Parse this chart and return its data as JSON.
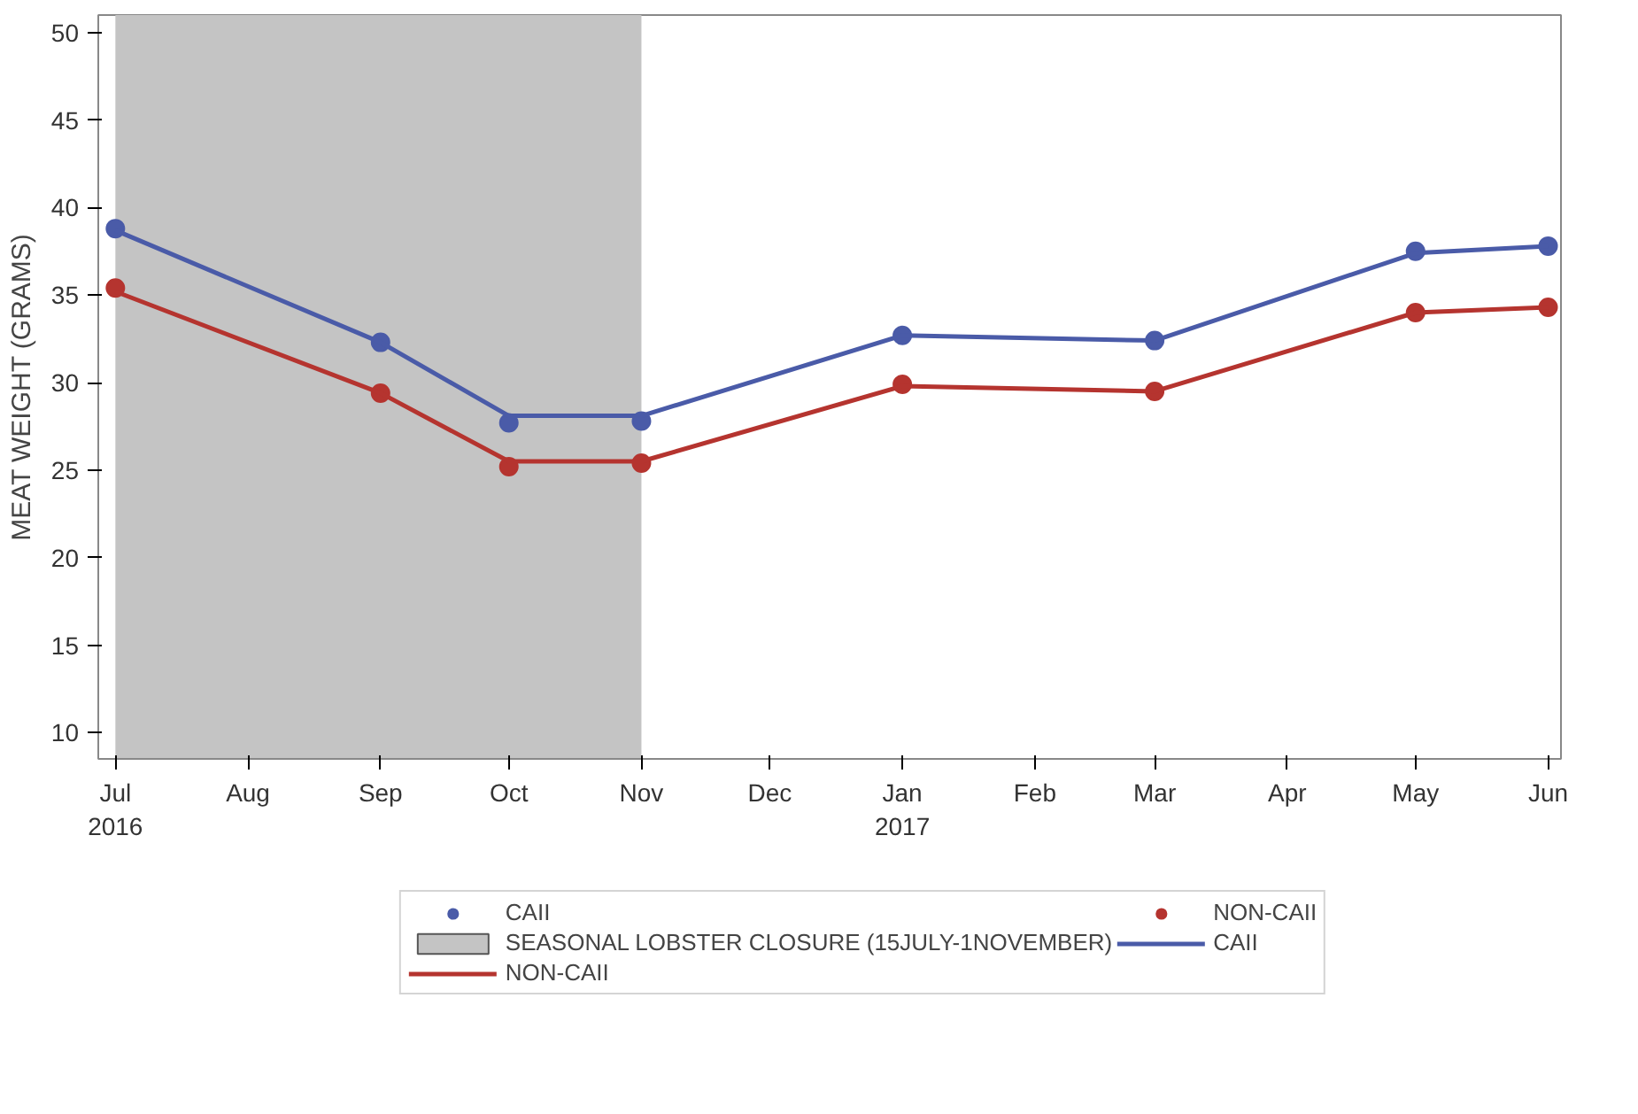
{
  "chart_data": {
    "type": "line",
    "ylabel": "MEAT WEIGHT (GRAMS)",
    "x": [
      "2016-07-01",
      "2016-09-01",
      "2016-10-01",
      "2016-11-01",
      "2017-01-01",
      "2017-03-01",
      "2017-05-01",
      "2017-06-01"
    ],
    "series": [
      {
        "name": "CAII",
        "type": "scatter",
        "marker": "circle",
        "color": "#4a5ba8",
        "values": [
          38.8,
          32.3,
          27.7,
          27.8,
          32.7,
          32.4,
          37.5,
          37.8
        ]
      },
      {
        "name": "NON-CAII",
        "type": "scatter",
        "marker": "circle",
        "color": "#b5342f",
        "values": [
          35.4,
          29.4,
          25.2,
          25.4,
          29.9,
          29.5,
          34.0,
          34.3
        ]
      },
      {
        "name": "CAII",
        "type": "line",
        "marker": "none",
        "color": "#4a5ba8",
        "values": [
          38.7,
          32.3,
          28.1,
          28.1,
          32.7,
          32.4,
          37.4,
          37.8
        ]
      },
      {
        "name": "NON-CAII",
        "type": "line",
        "marker": "none",
        "color": "#b5342f",
        "values": [
          35.2,
          29.4,
          25.5,
          25.5,
          29.8,
          29.5,
          34.0,
          34.3
        ]
      }
    ],
    "bands": [
      {
        "axis": "x",
        "from": "2016-07-01",
        "to": "2016-11-01",
        "label": "SEASONAL LOBSTER CLOSURE (15JULY-1NOVEMBER)",
        "color": "#c4c4c4"
      }
    ],
    "xlim": [
      "2016-06-27",
      "2017-06-04"
    ],
    "xticks": [
      {
        "value": "2016-07-01",
        "label": "Jul\n2016"
      },
      {
        "value": "2016-08-01",
        "label": "Aug"
      },
      {
        "value": "2016-09-01",
        "label": "Sep"
      },
      {
        "value": "2016-10-01",
        "label": "Oct"
      },
      {
        "value": "2016-11-01",
        "label": "Nov"
      },
      {
        "value": "2016-12-01",
        "label": "Dec"
      },
      {
        "value": "2017-01-01",
        "label": "Jan\n2017"
      },
      {
        "value": "2017-02-01",
        "label": "Feb"
      },
      {
        "value": "2017-03-01",
        "label": "Mar"
      },
      {
        "value": "2017-04-01",
        "label": "Apr"
      },
      {
        "value": "2017-05-01",
        "label": "May"
      },
      {
        "value": "2017-06-01",
        "label": "Jun"
      }
    ],
    "ylim": [
      8.5,
      51
    ],
    "yticks": [
      10,
      15,
      20,
      25,
      30,
      35,
      40,
      45,
      50
    ],
    "line_style": "solid",
    "grid": false,
    "legend": "bottom"
  }
}
